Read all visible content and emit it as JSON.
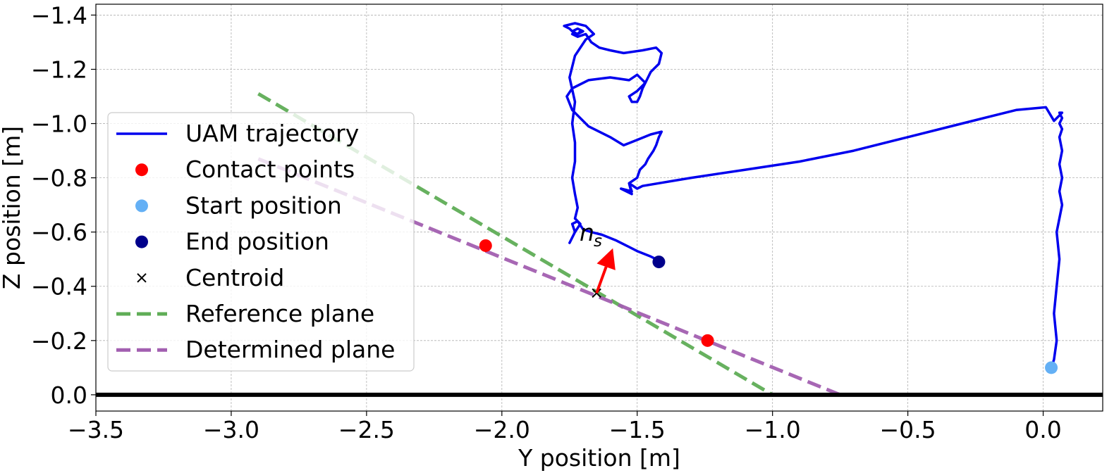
{
  "chart_data": {
    "type": "line",
    "xlabel": "Y position [m]",
    "ylabel": "Z position [m]",
    "xlim": [
      -3.5,
      0.22
    ],
    "ylim": [
      0.06,
      -1.44
    ],
    "y_inverted": true,
    "grid": true,
    "xticks": [
      -3.5,
      -3.0,
      -2.5,
      -2.0,
      -1.5,
      -1.0,
      -0.5,
      0.0
    ],
    "xtick_labels": [
      "−3.5",
      "−3.0",
      "−2.5",
      "−2.0",
      "−1.5",
      "−1.0",
      "−0.5",
      "0.0"
    ],
    "yticks": [
      -1.4,
      -1.2,
      -1.0,
      -0.8,
      -0.6,
      -0.4,
      -0.2,
      0.0
    ],
    "ytick_labels": [
      "−1.4",
      "−1.2",
      "−1.0",
      "−0.8",
      "−0.6",
      "−0.4",
      "−0.2",
      "0.0"
    ],
    "legend_position": "center-left",
    "colors": {
      "trajectory": "#0000ee",
      "contact": "#ff0000",
      "start": "#64b0f5",
      "end": "#00008b",
      "centroid": "#000000",
      "reference": "#5fad56",
      "determined": "#a25fb0",
      "normal": "#ff0000",
      "floor": "#000000"
    },
    "legend": [
      {
        "key": "trajectory",
        "label": "UAM trajectory",
        "marker": "line"
      },
      {
        "key": "contact",
        "label": "Contact points",
        "marker": "dot"
      },
      {
        "key": "start",
        "label": "Start position",
        "marker": "dot"
      },
      {
        "key": "end",
        "label": "End position",
        "marker": "dot"
      },
      {
        "key": "centroid",
        "label": "Centroid",
        "marker": "x"
      },
      {
        "key": "reference",
        "label": "Reference plane",
        "marker": "dash"
      },
      {
        "key": "determined",
        "label": "Determined plane",
        "marker": "dash"
      }
    ],
    "series": {
      "trajectory": {
        "name": "UAM trajectory",
        "x": [
          0.03,
          0.04,
          0.05,
          0.04,
          0.05,
          0.06,
          0.05,
          0.07,
          0.06,
          0.07,
          0.06,
          0.07,
          0.06,
          0.07,
          0.06,
          0.07,
          0.06,
          0.07,
          0.04,
          0.01,
          -0.1,
          -0.3,
          -0.5,
          -0.7,
          -0.9,
          -1.1,
          -1.3,
          -1.42,
          -1.48,
          -1.5,
          -1.53,
          -1.52,
          -1.56,
          -1.52,
          -1.53,
          -1.5,
          -1.49,
          -1.47,
          -1.46,
          -1.44,
          -1.43,
          -1.42,
          -1.41,
          -1.45,
          -1.5,
          -1.55,
          -1.6,
          -1.68,
          -1.74,
          -1.76,
          -1.74,
          -1.68,
          -1.6,
          -1.53,
          -1.5,
          -1.48,
          -1.47,
          -1.5,
          -1.53,
          -1.52,
          -1.5,
          -1.49,
          -1.48,
          -1.47,
          -1.46,
          -1.45,
          -1.42,
          -1.41,
          -1.43,
          -1.48,
          -1.55,
          -1.6,
          -1.64,
          -1.67,
          -1.69,
          -1.72,
          -1.74,
          -1.72,
          -1.7,
          -1.72,
          -1.74,
          -1.72,
          -1.71,
          -1.72,
          -1.73,
          -1.75,
          -1.77,
          -1.73,
          -1.69,
          -1.66,
          -1.69,
          -1.73,
          -1.75,
          -1.73,
          -1.74,
          -1.73,
          -1.73,
          -1.74,
          -1.73,
          -1.72,
          -1.73,
          -1.71,
          -1.73,
          -1.75,
          -1.73,
          -1.74,
          -1.72,
          -1.7,
          -1.67,
          -1.63,
          -1.58,
          -1.54,
          -1.5,
          -1.45,
          -1.43,
          -1.42
        ],
        "y": [
          -0.1,
          -0.13,
          -0.2,
          -0.3,
          -0.4,
          -0.5,
          -0.6,
          -0.7,
          -0.75,
          -0.8,
          -0.85,
          -0.9,
          -0.95,
          -0.98,
          -1.0,
          -1.02,
          -1.04,
          -1.04,
          -1.01,
          -1.06,
          -1.05,
          -1.0,
          -0.95,
          -0.9,
          -0.86,
          -0.83,
          -0.8,
          -0.78,
          -0.77,
          -0.76,
          -0.78,
          -0.75,
          -0.76,
          -0.74,
          -0.78,
          -0.8,
          -0.83,
          -0.85,
          -0.87,
          -0.9,
          -0.92,
          -0.95,
          -0.97,
          -0.96,
          -0.94,
          -0.92,
          -0.95,
          -0.99,
          -1.05,
          -1.1,
          -1.13,
          -1.16,
          -1.17,
          -1.16,
          -1.18,
          -1.16,
          -1.15,
          -1.12,
          -1.1,
          -1.08,
          -1.08,
          -1.1,
          -1.13,
          -1.15,
          -1.17,
          -1.19,
          -1.22,
          -1.26,
          -1.28,
          -1.27,
          -1.26,
          -1.27,
          -1.28,
          -1.3,
          -1.33,
          -1.32,
          -1.33,
          -1.33,
          -1.34,
          -1.35,
          -1.34,
          -1.33,
          -1.34,
          -1.33,
          -1.33,
          -1.35,
          -1.36,
          -1.37,
          -1.36,
          -1.33,
          -1.31,
          -1.25,
          -1.17,
          -1.08,
          -1.0,
          -0.93,
          -0.86,
          -0.8,
          -0.74,
          -0.69,
          -0.65,
          -0.63,
          -0.6,
          -0.56,
          -0.6,
          -0.63,
          -0.64,
          -0.61,
          -0.6,
          -0.59,
          -0.57,
          -0.55,
          -0.53,
          -0.51,
          -0.5,
          -0.49
        ]
      },
      "contact": {
        "name": "Contact points",
        "points": [
          [
            -2.06,
            -0.55
          ],
          [
            -1.24,
            -0.2
          ]
        ]
      },
      "start": {
        "name": "Start position",
        "points": [
          [
            0.03,
            -0.1
          ]
        ]
      },
      "end": {
        "name": "End position",
        "points": [
          [
            -1.42,
            -0.49
          ]
        ]
      },
      "centroid": {
        "name": "Centroid",
        "points": [
          [
            -1.65,
            -0.375
          ]
        ]
      },
      "reference": {
        "name": "Reference plane",
        "x": [
          -2.9,
          -1.0
        ],
        "y": [
          -1.11,
          0.0
        ]
      },
      "determined": {
        "name": "Determined plane",
        "x": [
          -2.9,
          -0.75
        ],
        "y": [
          -0.87,
          0.0
        ]
      }
    },
    "floor": {
      "y": 0.0
    },
    "normal_vector": {
      "from": [
        -1.65,
        -0.375
      ],
      "to": [
        -1.59,
        -0.54
      ],
      "label_main": "n",
      "label_sub": "s"
    }
  }
}
